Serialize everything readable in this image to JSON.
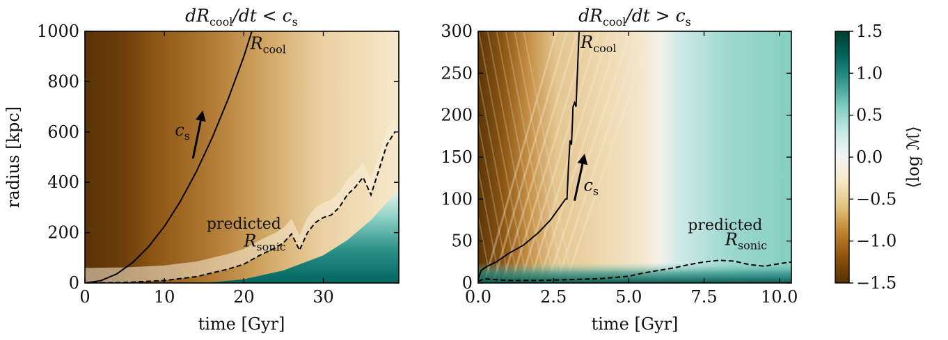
{
  "chart_data": [
    {
      "type": "heatmap",
      "title": "dR_cool/dt < c_s",
      "title_parts": {
        "var": "dR",
        "sub": "cool",
        "rest": "/dt < c",
        "sub2": "s"
      },
      "xlabel": "time [Gyr]",
      "ylabel": "radius [kpc]",
      "xlim": [
        0,
        39.5
      ],
      "ylim": [
        0,
        1000
      ],
      "xticks": [
        0,
        10,
        20,
        30
      ],
      "xtick_labels": [
        "0",
        "10",
        "20",
        "30"
      ],
      "yticks": [
        0,
        200,
        400,
        600,
        800,
        1000
      ],
      "ytick_labels": [
        "0",
        "200",
        "400",
        "600",
        "800",
        "1000"
      ],
      "field": "log Mach number",
      "series": [
        {
          "name": "R_cool",
          "style": "solid",
          "x": [
            0,
            2,
            4,
            6,
            8,
            10,
            12,
            14,
            16,
            18,
            20,
            21
          ],
          "y": [
            0,
            9,
            36,
            81,
            144,
            225,
            324,
            441,
            576,
            729,
            900,
            1000
          ]
        },
        {
          "name": "predicted R_sonic",
          "style": "dashed",
          "x": [
            0,
            5,
            10,
            14,
            18,
            20,
            22,
            24,
            25,
            26,
            27,
            28,
            29,
            30,
            31,
            32,
            33,
            34,
            35,
            36,
            37,
            38,
            39
          ],
          "y": [
            0,
            2,
            10,
            25,
            55,
            75,
            110,
            140,
            160,
            195,
            130,
            200,
            240,
            260,
            270,
            300,
            350,
            380,
            420,
            350,
            450,
            550,
            600
          ]
        }
      ],
      "arrow": {
        "label": "c",
        "label_sub": "s",
        "x0": 13.6,
        "y0": 495,
        "x1": 14.7,
        "y1": 665
      },
      "annotations": [
        {
          "text": "R",
          "sub": "cool",
          "x": 20.8,
          "y": 930
        },
        {
          "text": "predicted",
          "x": 20.0,
          "y": 215
        },
        {
          "text": "R",
          "sub": "sonic",
          "x": 20.0,
          "y": 145
        }
      ]
    },
    {
      "type": "heatmap",
      "title": "dR_cool/dt > c_s",
      "title_parts": {
        "var": "dR",
        "sub": "cool",
        "rest": "/dt > c",
        "sub2": "s"
      },
      "xlabel": "time [Gyr]",
      "ylabel": "",
      "xlim": [
        0,
        10.4
      ],
      "ylim": [
        0,
        300
      ],
      "xticks": [
        0,
        2.5,
        5,
        7.5,
        10
      ],
      "xtick_labels": [
        "0.0",
        "2.5",
        "5.0",
        "7.5",
        "10.0"
      ],
      "yticks": [
        0,
        50,
        100,
        150,
        200,
        250,
        300
      ],
      "ytick_labels": [
        "0",
        "50",
        "100",
        "150",
        "200",
        "250",
        "300"
      ],
      "field": "log Mach number",
      "series": [
        {
          "name": "R_cool",
          "style": "solid",
          "x": [
            0,
            0.1,
            0.3,
            0.6,
            1.0,
            1.5,
            2.0,
            2.4,
            2.7,
            2.9,
            2.95,
            3.0,
            3.05,
            3.1,
            3.15,
            3.2,
            3.25,
            3.3,
            3.35
          ],
          "y": [
            5,
            15,
            20,
            25,
            35,
            45,
            60,
            75,
            90,
            100,
            100,
            140,
            170,
            165,
            210,
            215,
            210,
            255,
            300
          ]
        },
        {
          "name": "predicted R_sonic",
          "style": "dashed",
          "x": [
            0,
            0.2,
            1.0,
            2.0,
            3.0,
            4.0,
            5.0,
            5.5,
            6.0,
            6.5,
            7.0,
            7.5,
            8.0,
            8.5,
            9.0,
            9.5,
            10.0,
            10.4
          ],
          "y": [
            2,
            5,
            3,
            3,
            4,
            5,
            8,
            12,
            15,
            18,
            22,
            25,
            27,
            26,
            22,
            20,
            23,
            25
          ]
        }
      ],
      "arrow": {
        "label": "c",
        "label_sub": "s",
        "x0": 3.2,
        "y0": 98,
        "x1": 3.5,
        "y1": 148
      },
      "annotations": [
        {
          "text": "R",
          "sub": "cool",
          "x": 3.4,
          "y": 280
        },
        {
          "text": "c",
          "sub": "s",
          "x": 3.5,
          "y": 110
        },
        {
          "text": "predicted",
          "x": 8.2,
          "y": 63
        },
        {
          "text": "R",
          "sub": "sonic",
          "x": 8.2,
          "y": 45
        }
      ]
    }
  ],
  "colorbar": {
    "label": "⟨log ℳ⟩",
    "min": -1.5,
    "max": 1.5,
    "ticks": [
      1.5,
      1.0,
      0.5,
      0.0,
      -0.5,
      -1.0,
      -1.5
    ],
    "tick_labels": [
      "1.5",
      "1.0",
      "0.5",
      "0.0",
      "−0.5",
      "−1.0",
      "−1.5"
    ],
    "colormap": "BrBG",
    "colors": [
      "#543005",
      "#8c510a",
      "#bf812d",
      "#dfc27d",
      "#f6e8c3",
      "#f5f5f5",
      "#c7eae5",
      "#80cdc1",
      "#35978f",
      "#01665e",
      "#003c30"
    ]
  }
}
